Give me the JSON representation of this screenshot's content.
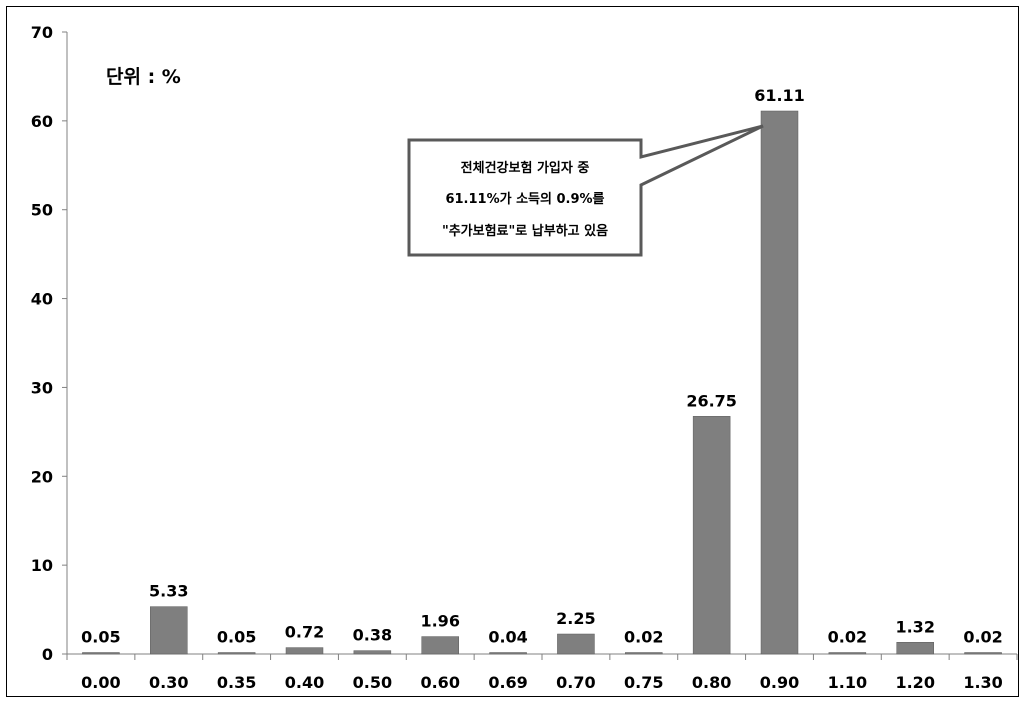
{
  "chart_data": {
    "type": "bar",
    "categories": [
      "0.00",
      "0.30",
      "0.35",
      "0.40",
      "0.50",
      "0.60",
      "0.69",
      "0.70",
      "0.75",
      "0.80",
      "0.90",
      "1.10",
      "1.20",
      "1.30"
    ],
    "values": [
      0.05,
      5.33,
      0.05,
      0.72,
      0.38,
      1.96,
      0.04,
      2.25,
      0.02,
      26.75,
      61.11,
      0.02,
      1.32,
      0.02
    ],
    "data_labels": [
      "0.05",
      "5.33",
      "0.05",
      "0.72",
      "0.38",
      "1.96",
      "0.04",
      "2.25",
      "0.02",
      "26.75",
      "61.11",
      "0.02",
      "1.32",
      "0.02"
    ],
    "ylim": [
      0,
      70
    ],
    "yticks": [
      0,
      10,
      20,
      30,
      40,
      50,
      60,
      70
    ],
    "ytick_labels": [
      "0",
      "10",
      "20",
      "30",
      "40",
      "50",
      "60",
      "70"
    ],
    "grid": false,
    "unit_label": "단위 : %",
    "annotation": {
      "lines": [
        "전체건강보험 가입자 중",
        "61.11%가 소득의 0.9%를",
        "\"추가보험료\"로 납부하고 있음"
      ],
      "target_category": "0.90"
    },
    "colors": {
      "bar": "#7f7f7f",
      "bar_stroke": "#5a5a5a",
      "axis": "#808080",
      "text": "#000000",
      "frame": "#000000",
      "callout_border": "#595959"
    }
  }
}
